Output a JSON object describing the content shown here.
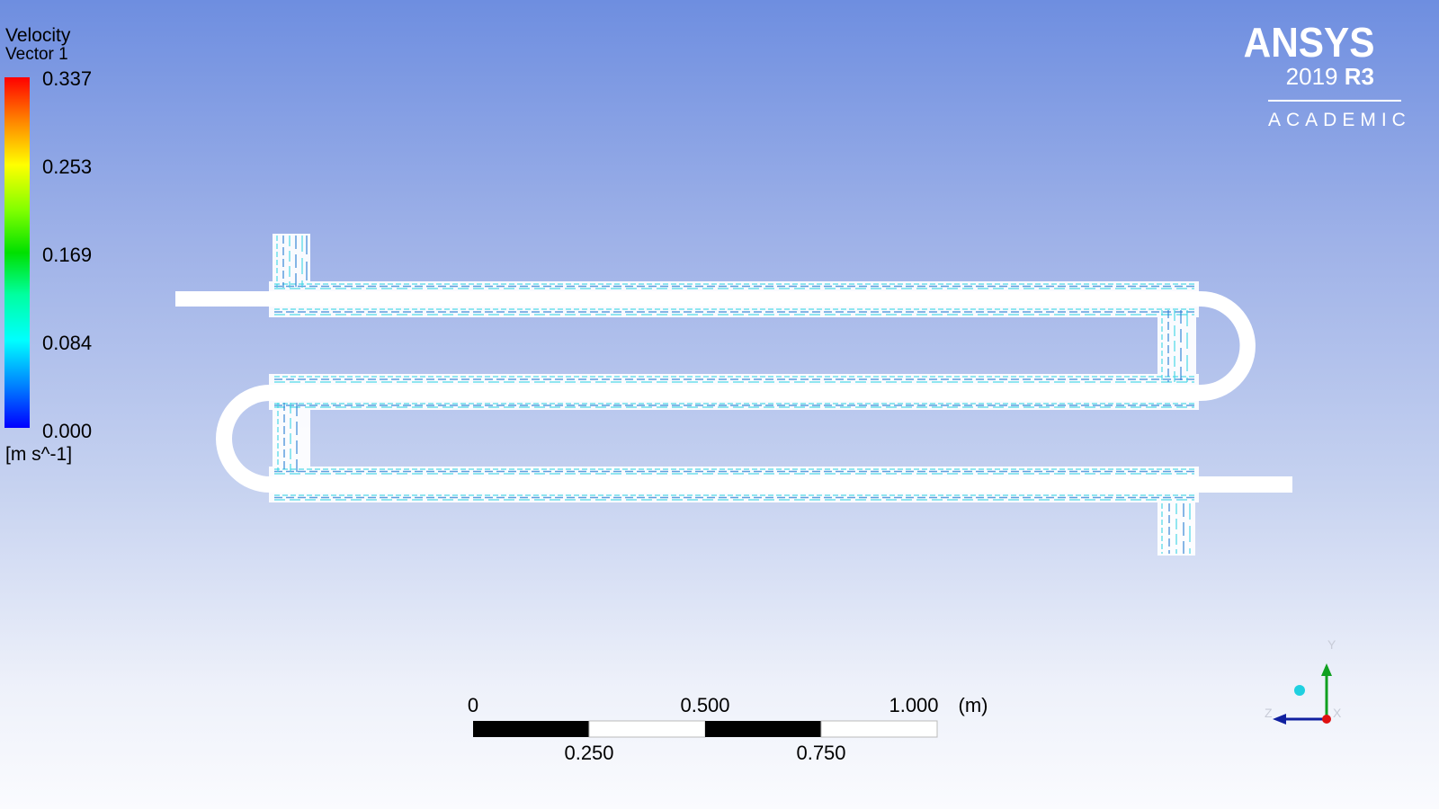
{
  "legend": {
    "title": "Velocity",
    "subtitle": "Vector 1",
    "ticks": [
      "0.337",
      "0.253",
      "0.169",
      "0.084",
      "0.000"
    ],
    "unit": "[m s^-1]",
    "range": [
      0.0,
      0.337
    ]
  },
  "logo": {
    "brand": "ANSYS",
    "version": "2019",
    "release": "R3",
    "edition": "ACADEMIC"
  },
  "scale_bar": {
    "top_labels": [
      "0",
      "0.500",
      "1.000"
    ],
    "bottom_labels": [
      "0.250",
      "0.750"
    ],
    "unit": "(m)"
  },
  "triad": {
    "x": "X",
    "y": "Y",
    "z": "Z"
  },
  "colors": {
    "vector_cyan": "#3fd6e6",
    "vector_blue": "#2a7fd4",
    "tube": "#ffffff"
  }
}
